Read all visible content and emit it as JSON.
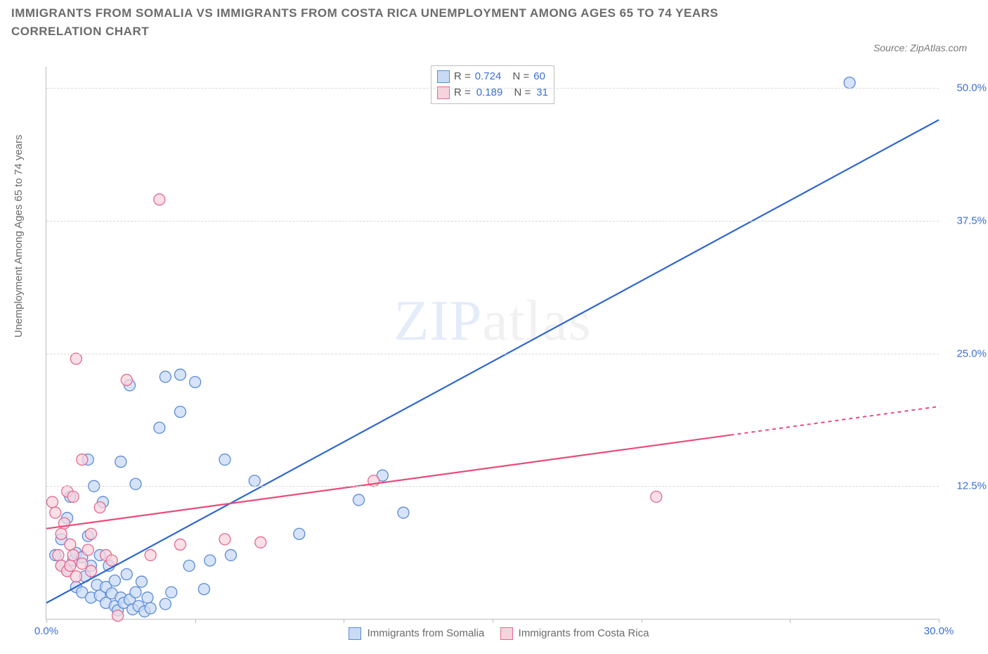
{
  "title": "IMMIGRANTS FROM SOMALIA VS IMMIGRANTS FROM COSTA RICA UNEMPLOYMENT AMONG AGES 65 TO 74 YEARS CORRELATION CHART",
  "source": "Source: ZipAtlas.com",
  "ylabel": "Unemployment Among Ages 65 to 74 years",
  "watermark_a": "ZIP",
  "watermark_b": "atlas",
  "chart": {
    "type": "scatter",
    "xlim": [
      0,
      30
    ],
    "ylim": [
      0,
      52
    ],
    "xticks": [
      0,
      5,
      10,
      15,
      20,
      25,
      30
    ],
    "xtick_labels": [
      "0.0%",
      "",
      "",
      "",
      "",
      "",
      "30.0%"
    ],
    "yticks": [
      12.5,
      25.0,
      37.5,
      50.0
    ],
    "ytick_labels": [
      "12.5%",
      "25.0%",
      "37.5%",
      "50.0%"
    ],
    "grid_color": "#d9d9d9",
    "background": "#ffffff",
    "series": [
      {
        "name": "Immigrants from Somalia",
        "color_fill": "#c9daf5",
        "color_stroke": "#5a8bd6",
        "line_color": "#2f66d0",
        "r_label": "R =",
        "r_value": "0.724",
        "n_label": "N =",
        "n_value": "60",
        "regression": {
          "x1": 0,
          "y1": 1.5,
          "x2": 30,
          "y2": 47.0,
          "dash_from_x": 30
        },
        "points": [
          [
            0.3,
            6.0
          ],
          [
            0.5,
            5.0
          ],
          [
            0.5,
            7.5
          ],
          [
            0.7,
            4.5
          ],
          [
            0.7,
            9.5
          ],
          [
            0.8,
            11.5
          ],
          [
            0.9,
            5.5
          ],
          [
            1.0,
            6.2
          ],
          [
            1.0,
            3.0
          ],
          [
            1.2,
            5.8
          ],
          [
            1.2,
            2.5
          ],
          [
            1.3,
            4.0
          ],
          [
            1.4,
            7.8
          ],
          [
            1.4,
            15.0
          ],
          [
            1.5,
            5.0
          ],
          [
            1.5,
            2.0
          ],
          [
            1.6,
            12.5
          ],
          [
            1.7,
            3.2
          ],
          [
            1.8,
            6.0
          ],
          [
            1.8,
            2.2
          ],
          [
            1.9,
            11.0
          ],
          [
            2.0,
            3.0
          ],
          [
            2.0,
            1.5
          ],
          [
            2.1,
            5.0
          ],
          [
            2.2,
            2.4
          ],
          [
            2.3,
            3.6
          ],
          [
            2.3,
            1.2
          ],
          [
            2.4,
            0.8
          ],
          [
            2.5,
            2.0
          ],
          [
            2.5,
            14.8
          ],
          [
            2.6,
            1.5
          ],
          [
            2.7,
            4.2
          ],
          [
            2.8,
            22.0
          ],
          [
            2.8,
            1.8
          ],
          [
            2.9,
            0.9
          ],
          [
            3.0,
            2.5
          ],
          [
            3.0,
            12.7
          ],
          [
            3.1,
            1.2
          ],
          [
            3.2,
            3.5
          ],
          [
            3.3,
            0.7
          ],
          [
            3.4,
            2.0
          ],
          [
            3.5,
            1.0
          ],
          [
            3.8,
            18.0
          ],
          [
            4.0,
            1.4
          ],
          [
            4.0,
            22.8
          ],
          [
            4.2,
            2.5
          ],
          [
            4.5,
            23.0
          ],
          [
            4.5,
            19.5
          ],
          [
            4.8,
            5.0
          ],
          [
            5.0,
            22.3
          ],
          [
            5.3,
            2.8
          ],
          [
            5.5,
            5.5
          ],
          [
            6.0,
            15.0
          ],
          [
            6.2,
            6.0
          ],
          [
            7.0,
            13.0
          ],
          [
            8.5,
            8.0
          ],
          [
            10.5,
            11.2
          ],
          [
            11.3,
            13.5
          ],
          [
            12.0,
            10.0
          ],
          [
            27.0,
            50.5
          ]
        ]
      },
      {
        "name": "Immigrants from Costa Rica",
        "color_fill": "#f7d4dd",
        "color_stroke": "#e26a8e",
        "line_color": "#e94b7a",
        "r_label": "R =",
        "r_value": "0.189",
        "n_label": "N =",
        "n_value": "31",
        "regression": {
          "x1": 0,
          "y1": 8.5,
          "x2": 30,
          "y2": 20.0,
          "dash_from_x": 23
        },
        "points": [
          [
            0.2,
            11.0
          ],
          [
            0.3,
            10.0
          ],
          [
            0.4,
            6.0
          ],
          [
            0.5,
            8.0
          ],
          [
            0.5,
            5.0
          ],
          [
            0.6,
            9.0
          ],
          [
            0.7,
            4.5
          ],
          [
            0.7,
            12.0
          ],
          [
            0.8,
            7.0
          ],
          [
            0.8,
            5.0
          ],
          [
            0.9,
            11.5
          ],
          [
            0.9,
            6.0
          ],
          [
            1.0,
            4.0
          ],
          [
            1.0,
            24.5
          ],
          [
            1.2,
            5.2
          ],
          [
            1.2,
            15.0
          ],
          [
            1.4,
            6.5
          ],
          [
            1.5,
            8.0
          ],
          [
            1.5,
            4.5
          ],
          [
            1.8,
            10.5
          ],
          [
            2.0,
            6.0
          ],
          [
            2.2,
            5.5
          ],
          [
            2.4,
            0.3
          ],
          [
            2.7,
            22.5
          ],
          [
            3.5,
            6.0
          ],
          [
            3.8,
            39.5
          ],
          [
            4.5,
            7.0
          ],
          [
            6.0,
            7.5
          ],
          [
            7.2,
            7.2
          ],
          [
            11.0,
            13.0
          ],
          [
            20.5,
            11.5
          ]
        ]
      }
    ],
    "bottom_legend": [
      {
        "swatch_fill": "#c9daf5",
        "swatch_stroke": "#5a8bd6",
        "label": "Immigrants from Somalia"
      },
      {
        "swatch_fill": "#f7d4dd",
        "swatch_stroke": "#e26a8e",
        "label": "Immigrants from Costa Rica"
      }
    ]
  }
}
